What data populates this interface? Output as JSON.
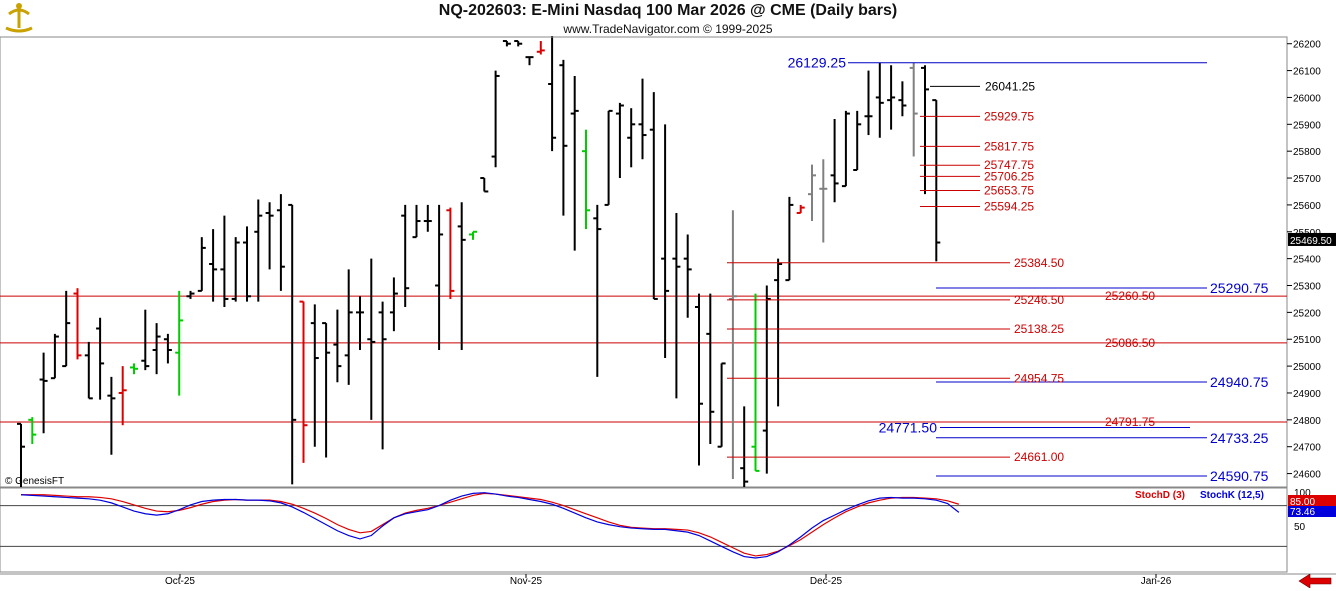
{
  "header": {
    "title": "NQ-202603:  E-Mini Nasdaq 100 Mar 2026 @ CME  (Daily bars)",
    "subtitle": "www.TradeNavigator.com © 1999-2025"
  },
  "watermark": "© GenesisFT",
  "colors": {
    "background": "#ffffff",
    "bar": "#000000",
    "bar_gray": "#808080",
    "bar_up_signal": "#00cc00",
    "bar_down_signal": "#dd0000",
    "level_red": "#cc0000",
    "level_blue": "#0000cc",
    "stoch_d": "#dd0000",
    "stoch_k": "#0000dd",
    "grid": "#555555",
    "axis": "#888888"
  },
  "chart_data": [
    {
      "type": "bar",
      "subtype": "ohlc",
      "title": "NQ-202603:  E-Mini Nasdaq 100 Mar 2026 @ CME  (Daily bars)",
      "ylim": [
        24550,
        26225
      ],
      "y_ticks": [
        24600,
        24700,
        24800,
        24900,
        25000,
        25100,
        25200,
        25300,
        25400,
        25500,
        25600,
        25700,
        25800,
        25900,
        26000,
        26100,
        26200
      ],
      "x_labels": [
        "Oct-25",
        "Nov-25",
        "Dec-25",
        "Jan-26"
      ],
      "last_price_label": "25469.50",
      "bars": [
        [
          24785,
          24550,
          24785,
          24700,
          "k"
        ],
        [
          24800,
          24810,
          24710,
          24745,
          "g"
        ],
        [
          24950,
          25050,
          24750,
          24945,
          "k"
        ],
        [
          24955,
          25120,
          24990,
          25110,
          "k"
        ],
        [
          25000,
          25280,
          25030,
          25160,
          "k"
        ],
        [
          25270,
          25290,
          25025,
          25040,
          "r"
        ],
        [
          25040,
          25090,
          24960,
          24880,
          "k"
        ],
        [
          25140,
          25180,
          24875,
          25010,
          "k"
        ],
        [
          24890,
          24960,
          24670,
          24880,
          "k"
        ],
        [
          24900,
          25000,
          24780,
          24910,
          "r"
        ],
        [
          24995,
          25010,
          24970,
          24990,
          "g"
        ],
        [
          25020,
          25210,
          24985,
          25000,
          "k"
        ],
        [
          25060,
          25160,
          24970,
          25110,
          "k"
        ],
        [
          25100,
          25120,
          25010,
          25060,
          "k"
        ],
        [
          25050,
          25280,
          24890,
          25170,
          "g"
        ],
        [
          25260,
          25280,
          25250,
          25270,
          "k"
        ],
        [
          25280,
          25480,
          25300,
          25440,
          "k"
        ],
        [
          25380,
          25510,
          25240,
          25360,
          "k"
        ],
        [
          25360,
          25560,
          25220,
          25250,
          "k"
        ],
        [
          25250,
          25480,
          25240,
          25460,
          "k"
        ],
        [
          25460,
          25520,
          25240,
          25260,
          "k"
        ],
        [
          25500,
          25620,
          25240,
          25560,
          "k"
        ],
        [
          25570,
          25610,
          25360,
          25560,
          "k"
        ],
        [
          25580,
          25640,
          25280,
          25370,
          "k"
        ],
        [
          25600,
          25600,
          24560,
          24800,
          "k"
        ],
        [
          25240,
          25200,
          24640,
          24780,
          "r"
        ],
        [
          25160,
          25230,
          24700,
          25030,
          "k"
        ],
        [
          25160,
          25160,
          24660,
          25050,
          "k"
        ],
        [
          25080,
          25210,
          24940,
          25000,
          "k"
        ],
        [
          25040,
          25360,
          24930,
          25200,
          "k"
        ],
        [
          25200,
          25260,
          25060,
          25200,
          "k"
        ],
        [
          25100,
          25400,
          24800,
          25090,
          "k"
        ],
        [
          25200,
          25240,
          24690,
          25100,
          "k"
        ],
        [
          25200,
          25330,
          25130,
          25270,
          "k"
        ],
        [
          25560,
          25600,
          25220,
          25290,
          "k"
        ],
        [
          25480,
          25600,
          25480,
          25540,
          "k"
        ],
        [
          25540,
          25600,
          25500,
          25540,
          "k"
        ],
        [
          25300,
          25600,
          25060,
          25490,
          "k"
        ],
        [
          25580,
          25590,
          25250,
          25280,
          "r"
        ],
        [
          25520,
          25610,
          25060,
          25470,
          "k"
        ],
        [
          25490,
          25500,
          25470,
          25500,
          "g"
        ],
        [
          25700,
          25700,
          25650,
          25650,
          "k"
        ],
        [
          25780,
          26100,
          25740,
          26080,
          "k"
        ],
        [
          26210,
          26210,
          26190,
          26200,
          "k"
        ],
        [
          26210,
          26210,
          26190,
          26200,
          "k"
        ],
        [
          26150,
          26150,
          26120,
          26150,
          "k"
        ],
        [
          26170,
          26210,
          26160,
          26175,
          "r"
        ],
        [
          26050,
          26350,
          25800,
          25850,
          "k"
        ],
        [
          26120,
          26140,
          25560,
          25820,
          "k"
        ],
        [
          25940,
          26080,
          25430,
          25950,
          "k"
        ],
        [
          25800,
          25880,
          25510,
          25580,
          "g"
        ],
        [
          25550,
          25600,
          24960,
          25510,
          "k"
        ],
        [
          25600,
          25950,
          25680,
          25950,
          "k"
        ],
        [
          25940,
          25980,
          25700,
          25970,
          "k"
        ],
        [
          25850,
          25960,
          25740,
          25900,
          "k"
        ],
        [
          25900,
          26070,
          25770,
          25860,
          "k"
        ],
        [
          25880,
          26020,
          25250,
          25250,
          "k"
        ],
        [
          25400,
          25900,
          25030,
          25280,
          "k"
        ],
        [
          25400,
          25570,
          24880,
          25370,
          "k"
        ],
        [
          25400,
          25490,
          25180,
          25360,
          "k"
        ],
        [
          25220,
          25270,
          24630,
          24860,
          "k"
        ],
        [
          25120,
          25270,
          24710,
          24830,
          "k"
        ],
        [
          24700,
          25010,
          24820,
          25010,
          "k"
        ],
        [
          25250,
          25580,
          24580,
          25260,
          "gr"
        ],
        [
          24620,
          24850,
          24550,
          24570,
          "k"
        ],
        [
          24700,
          25270,
          24640,
          24610,
          "g"
        ],
        [
          24760,
          25300,
          24600,
          25250,
          "k"
        ],
        [
          25320,
          25400,
          24850,
          25380,
          "k"
        ],
        [
          25320,
          25630,
          25340,
          25600,
          "k"
        ],
        [
          25570,
          25600,
          25600,
          25590,
          "r"
        ],
        [
          25640,
          25750,
          25540,
          25710,
          "gr"
        ],
        [
          25660,
          25770,
          25460,
          25660,
          "gr"
        ],
        [
          25710,
          25920,
          25610,
          25680,
          "k"
        ],
        [
          25670,
          25950,
          25680,
          25940,
          "k"
        ],
        [
          25730,
          25950,
          25850,
          25900,
          "k"
        ],
        [
          25930,
          26100,
          25860,
          25930,
          "k"
        ],
        [
          26000,
          26130,
          25850,
          25980,
          "k"
        ],
        [
          25990,
          26120,
          25880,
          26000,
          "k"
        ],
        [
          25990,
          26060,
          25930,
          25970,
          "k"
        ],
        [
          26110,
          26130,
          25780,
          25940,
          "gr"
        ],
        [
          26110,
          26120,
          25640,
          26030,
          "k"
        ],
        [
          25990,
          25990,
          25390,
          25460,
          "k"
        ]
      ],
      "red_levels": [
        {
          "label": "25929.75",
          "price": 25929.75
        },
        {
          "label": "25817.75",
          "price": 25817.75
        },
        {
          "label": "25747.75",
          "price": 25747.75
        },
        {
          "label": "25706.25",
          "price": 25706.25
        },
        {
          "label": "25653.75",
          "price": 25653.75
        },
        {
          "label": "25594.25",
          "price": 25594.25
        },
        {
          "label": "25384.50",
          "price": 25384.5
        },
        {
          "label": "25246.50",
          "price": 25246.5
        },
        {
          "label": "25138.25",
          "price": 25138.25
        },
        {
          "label": "24954.75",
          "price": 24954.75
        },
        {
          "label": "24661.00",
          "price": 24661.0
        }
      ],
      "red_full_levels": [
        {
          "label": "25260.50",
          "price": 25260.5
        },
        {
          "label": "25086.50",
          "price": 25086.5
        },
        {
          "label": "24791.75",
          "price": 24791.75
        }
      ],
      "black_level": {
        "label": "26041.25",
        "price": 26041.25
      },
      "blue_levels": [
        {
          "label": "26129.25",
          "price": 26129.25
        },
        {
          "label": "25290.75",
          "price": 25290.75
        },
        {
          "label": "24940.75",
          "price": 24940.75
        },
        {
          "label": "24771.50",
          "price": 24771.5
        },
        {
          "label": "24733.25",
          "price": 24733.25
        },
        {
          "label": "24590.75",
          "price": 24590.75
        }
      ]
    },
    {
      "type": "line",
      "title": "",
      "legend": [
        "StochD (3)",
        "StochK (12,5)"
      ],
      "ylim": [
        0,
        100
      ],
      "y_ticks": [
        100,
        80,
        50
      ],
      "reference_lines": [
        80,
        20
      ],
      "last_values": {
        "stoch_d": "85.00",
        "stoch_k": "73.46"
      },
      "series": [
        {
          "name": "StochD (3)",
          "color": "#dd0000",
          "values": [
            96,
            96,
            96,
            95,
            94,
            93,
            93,
            92,
            90,
            86,
            81,
            76,
            72,
            71,
            73,
            77,
            82,
            86,
            88,
            89,
            88,
            88,
            88,
            86,
            82,
            76,
            69,
            61,
            52,
            45,
            40,
            42,
            52,
            62,
            69,
            73,
            76,
            80,
            85,
            90,
            95,
            98,
            97,
            95,
            93,
            91,
            89,
            85,
            80,
            74,
            68,
            62,
            56,
            51,
            48,
            47,
            46,
            46,
            45,
            44,
            40,
            34,
            26,
            18,
            10,
            6,
            8,
            13,
            21,
            30,
            41,
            52,
            62,
            71,
            78,
            84,
            88,
            91,
            92,
            92,
            91,
            90,
            87,
            82
          ]
        },
        {
          "name": "StochK (12,5)",
          "color": "#0000dd",
          "values": [
            96,
            95,
            94,
            93,
            92,
            91,
            90,
            88,
            84,
            78,
            72,
            68,
            66,
            68,
            74,
            81,
            86,
            88,
            89,
            89,
            88,
            88,
            87,
            84,
            78,
            70,
            61,
            52,
            43,
            36,
            31,
            36,
            50,
            62,
            68,
            71,
            74,
            80,
            88,
            94,
            98,
            99,
            97,
            94,
            92,
            89,
            86,
            82,
            76,
            69,
            62,
            56,
            52,
            49,
            47,
            46,
            45,
            45,
            43,
            41,
            36,
            28,
            20,
            12,
            5,
            3,
            5,
            12,
            22,
            34,
            47,
            58,
            66,
            74,
            81,
            87,
            91,
            92,
            91,
            91,
            90,
            88,
            83,
            70
          ]
        }
      ]
    }
  ]
}
